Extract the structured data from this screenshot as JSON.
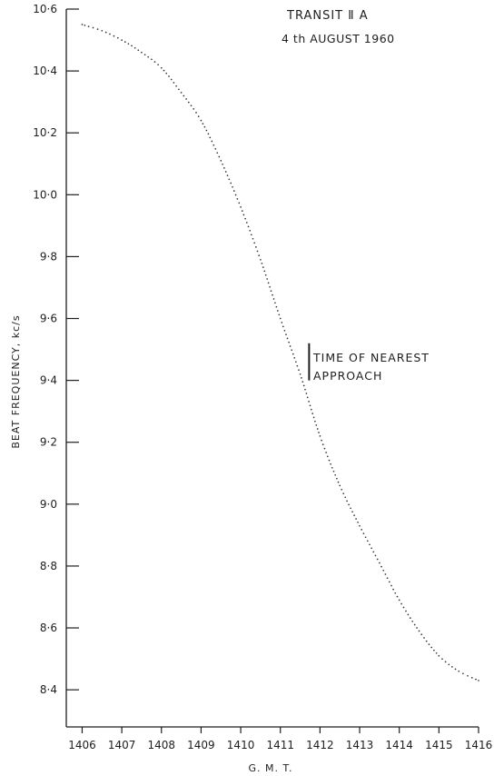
{
  "chart_data": {
    "type": "scatter",
    "title": "TRANSIT Ⅱ A",
    "subtitle": "4 th AUGUST 1960",
    "xlabel": "G. M. T.",
    "ylabel": "BEAT FREQUENCY, kc/s",
    "xlim": [
      1405.6,
      1416
    ],
    "ylim": [
      8.28,
      10.6
    ],
    "x_ticks": [
      1406,
      1407,
      1408,
      1409,
      1410,
      1411,
      1412,
      1413,
      1414,
      1415,
      1416
    ],
    "x_tick_labels": [
      "1406",
      "1407",
      "1408",
      "1409",
      "1410",
      "1411",
      "1412",
      "1413",
      "1414",
      "1415",
      "1416"
    ],
    "y_ticks": [
      10.6,
      10.4,
      10.2,
      10.0,
      9.8,
      9.6,
      9.4,
      9.2,
      9.0,
      8.8,
      8.6,
      8.4
    ],
    "y_tick_labels": [
      "10·6",
      "10·4",
      "10·2",
      "10·0",
      "9·8",
      "9·6",
      "9·4",
      "9·2",
      "9·0",
      "8·8",
      "8·6",
      "8·4"
    ],
    "grid": false,
    "marker": "small dots",
    "color": "#333333",
    "curve_points": [
      {
        "x": 1406.0,
        "y": 10.55
      },
      {
        "x": 1406.5,
        "y": 10.53
      },
      {
        "x": 1407.0,
        "y": 10.5
      },
      {
        "x": 1407.5,
        "y": 10.46
      },
      {
        "x": 1408.0,
        "y": 10.41
      },
      {
        "x": 1408.5,
        "y": 10.33
      },
      {
        "x": 1409.0,
        "y": 10.24
      },
      {
        "x": 1409.5,
        "y": 10.11
      },
      {
        "x": 1410.0,
        "y": 9.96
      },
      {
        "x": 1410.5,
        "y": 9.79
      },
      {
        "x": 1411.0,
        "y": 9.6
      },
      {
        "x": 1411.5,
        "y": 9.42
      },
      {
        "x": 1412.0,
        "y": 9.22
      },
      {
        "x": 1412.5,
        "y": 9.06
      },
      {
        "x": 1413.0,
        "y": 8.93
      },
      {
        "x": 1413.5,
        "y": 8.81
      },
      {
        "x": 1414.0,
        "y": 8.69
      },
      {
        "x": 1414.5,
        "y": 8.59
      },
      {
        "x": 1415.0,
        "y": 8.51
      },
      {
        "x": 1415.5,
        "y": 8.46
      },
      {
        "x": 1416.0,
        "y": 8.43
      }
    ],
    "annotation": {
      "lines": [
        "TIME OF NEAREST",
        "APPROACH"
      ],
      "x": 1411.45,
      "y_range": [
        9.4,
        9.52
      ]
    }
  }
}
